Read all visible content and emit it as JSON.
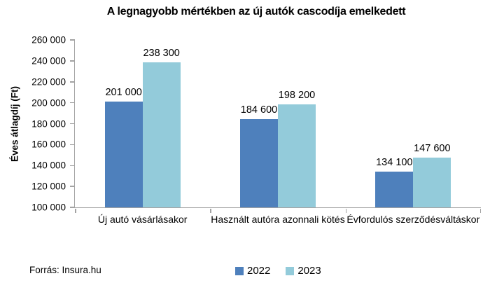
{
  "source_label": "Forrás: Insura.hu",
  "chart_data": {
    "type": "bar",
    "title": "A legnagyobb mértékben az új autók cascodíja emelkedett",
    "xlabel": "",
    "ylabel": "Éves átlagdíj (Ft)",
    "ylim": [
      100000,
      260000
    ],
    "ytick_step": 20000,
    "ytick_labels": [
      "100 000",
      "120 000",
      "140 000",
      "160 000",
      "180 000",
      "200 000",
      "220 000",
      "240 000",
      "260 000"
    ],
    "grid": false,
    "legend_position": "bottom",
    "categories": [
      "Új autó vásárlásakor",
      "Használt autóra azonnali kötés",
      "Évfordulós szerződésváltáskor"
    ],
    "series": [
      {
        "name": "2022",
        "color": "#4E80BC",
        "values": [
          201000,
          184600,
          134100
        ],
        "labels": [
          "201 000",
          "184 600",
          "134 100"
        ]
      },
      {
        "name": "2023",
        "color": "#93CBDA",
        "values": [
          238300,
          198200,
          147600
        ],
        "labels": [
          "238 300",
          "198 200",
          "147 600"
        ]
      }
    ]
  }
}
